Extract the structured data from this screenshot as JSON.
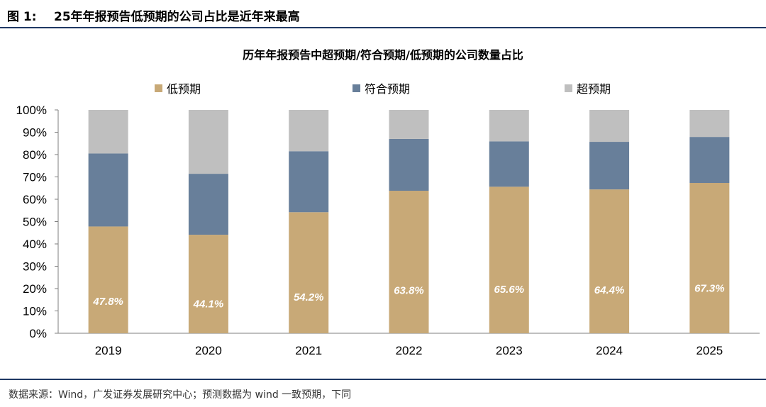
{
  "figure": {
    "label": "图 1:",
    "title": "25年年报预告低预期的公司占比是近年来最高"
  },
  "source": "数据来源：Wind，广发证券发展研究中心；预测数据为 wind 一致预期，下同",
  "chart_data": {
    "type": "bar",
    "stacked": true,
    "title": "历年年报预告中超预期/符合预期/低预期的公司数量占比",
    "categories": [
      "2019",
      "2020",
      "2021",
      "2022",
      "2023",
      "2024",
      "2025"
    ],
    "series": [
      {
        "name": "低预期",
        "color": "#c8a977",
        "values": [
          47.8,
          44.1,
          54.2,
          63.8,
          65.6,
          64.4,
          67.3
        ],
        "labels": [
          "47.8%",
          "44.1%",
          "54.2%",
          "63.8%",
          "65.6%",
          "64.4%",
          "67.3%"
        ]
      },
      {
        "name": "符合预期",
        "color": "#687f9a",
        "values": [
          32.7,
          27.3,
          27.3,
          23.2,
          20.3,
          21.3,
          20.6
        ]
      },
      {
        "name": "超预期",
        "color": "#bfbfbf",
        "values": [
          19.5,
          28.6,
          18.5,
          13.0,
          14.1,
          14.3,
          12.1
        ]
      }
    ],
    "y_ticks": [
      "0%",
      "10%",
      "20%",
      "30%",
      "40%",
      "50%",
      "60%",
      "70%",
      "80%",
      "90%",
      "100%"
    ],
    "ylim": [
      0,
      100
    ],
    "legend_position": "top"
  }
}
